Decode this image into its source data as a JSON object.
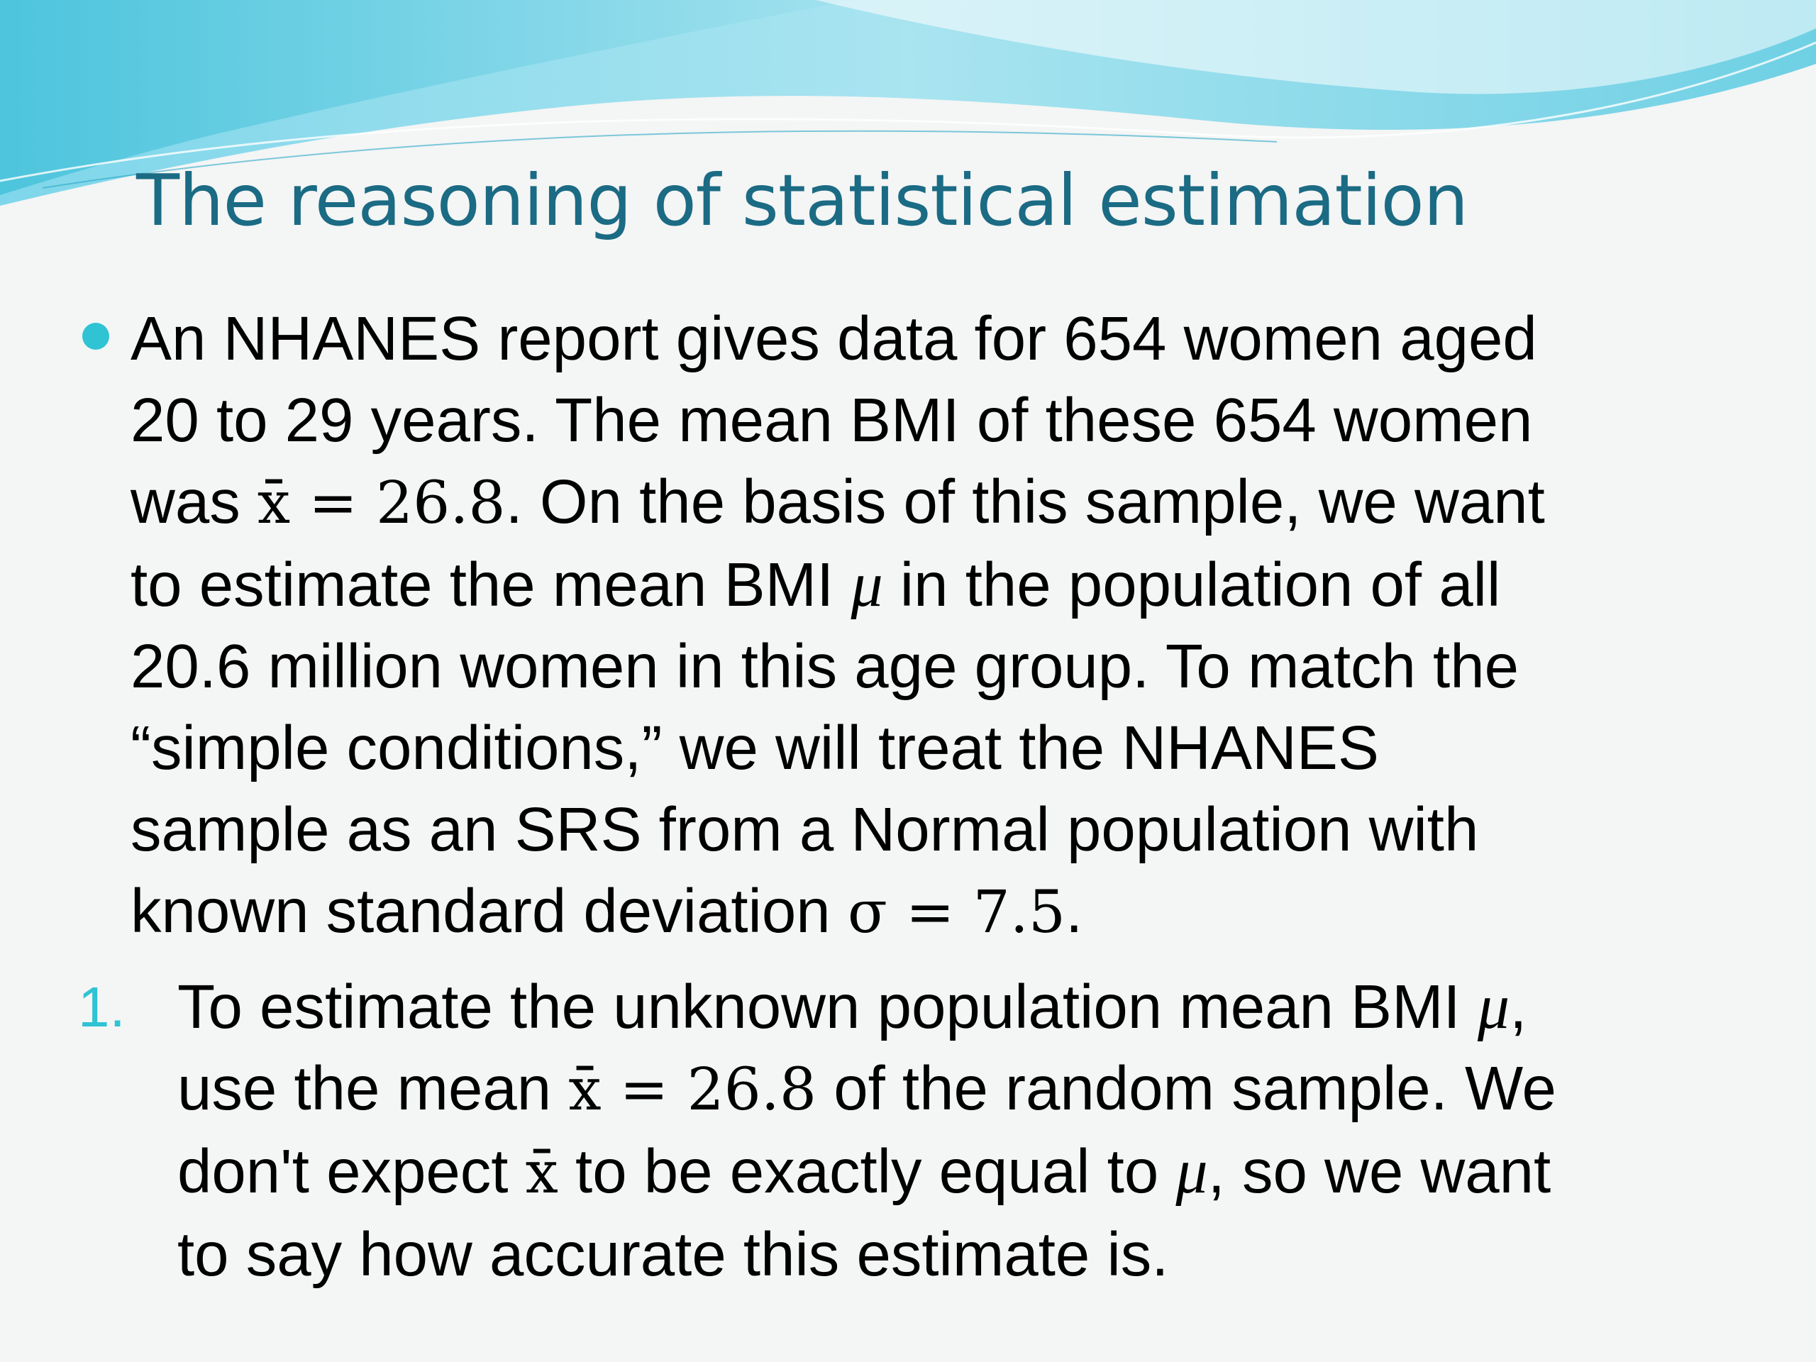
{
  "slide": {
    "title": "The reasoning of statistical estimation"
  },
  "bullet": {
    "lines": [
      [
        "An NHANES report gives data for 654 women aged"
      ],
      [
        "20 to 29 years.  The mean BMI of these 654 women"
      ],
      [
        "was ",
        "x̄ = 26.8",
        ". On the basis of this sample, we want"
      ],
      [
        "to estimate the mean BMI ",
        "μ",
        " in the population of all"
      ],
      [
        "20.6 million women in this age group. To match the"
      ],
      [
        "“simple conditions,” we will treat the NHANES"
      ],
      [
        "sample as an SRS from a Normal population with"
      ],
      [
        "known standard deviation ",
        "σ = 7.5",
        "."
      ]
    ]
  },
  "numbered": {
    "number": "1.",
    "lines": [
      [
        "To estimate the unknown population mean BMI ",
        "μ",
        ","
      ],
      [
        "use the mean ",
        "x̄ = 26.8",
        " of the random sample. We"
      ],
      [
        "don't expect ",
        "x̄",
        " to be exactly equal to ",
        "μ",
        ", so we want"
      ],
      [
        "to say how accurate this estimate is."
      ]
    ]
  },
  "theme": {
    "title_color": "#1b6b84",
    "accent_color": "#2fc3d4",
    "background": "#f4f5f5"
  }
}
